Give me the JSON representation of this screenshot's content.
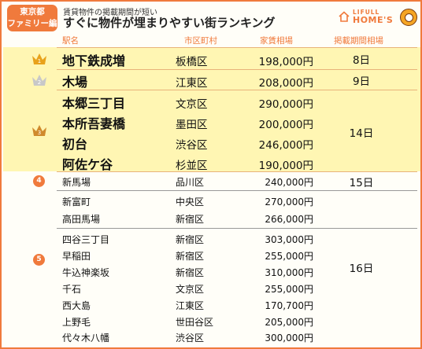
{
  "header": {
    "badge_line1": "東京都",
    "badge_line2": "ファミリー編",
    "subtitle": "賃貸物件の掲載期間が短い",
    "title": "すぐに物件が埋まりやすい街ランキング",
    "logo_small": "LIFULL",
    "logo_big": "HOME'S"
  },
  "columns": {
    "station": "駅名",
    "ward": "市区町村",
    "rent": "家賃相場",
    "period": "掲載期間相場"
  },
  "ranks": {
    "r1": "1",
    "r2": "2",
    "r3": "3",
    "r4": "4",
    "r5": "5"
  },
  "rows": [
    {
      "name": "地下鉄成増",
      "ward": "板橋区",
      "rent": "198,000円"
    },
    {
      "name": "木場",
      "ward": "江東区",
      "rent": "208,000円"
    },
    {
      "name": "本郷三丁目",
      "ward": "文京区",
      "rent": "290,000円"
    },
    {
      "name": "本所吾妻橋",
      "ward": "墨田区",
      "rent": "200,000円"
    },
    {
      "name": "初台",
      "ward": "渋谷区",
      "rent": "246,000円"
    },
    {
      "name": "阿佐ケ谷",
      "ward": "杉並区",
      "rent": "190,000円"
    },
    {
      "name": "新馬場",
      "ward": "品川区",
      "rent": "240,000円"
    },
    {
      "name": "新富町",
      "ward": "中央区",
      "rent": "270,000円"
    },
    {
      "name": "高田馬場",
      "ward": "新宿区",
      "rent": "266,000円"
    },
    {
      "name": "四谷三丁目",
      "ward": "新宿区",
      "rent": "303,000円"
    },
    {
      "name": "早稲田",
      "ward": "新宿区",
      "rent": "255,000円"
    },
    {
      "name": "牛込神楽坂",
      "ward": "新宿区",
      "rent": "310,000円"
    },
    {
      "name": "千石",
      "ward": "文京区",
      "rent": "255,000円"
    },
    {
      "name": "西大島",
      "ward": "江東区",
      "rent": "170,700円"
    },
    {
      "name": "上野毛",
      "ward": "世田谷区",
      "rent": "205,000円"
    },
    {
      "name": "代々木八幡",
      "ward": "渋谷区",
      "rent": "300,000円"
    }
  ],
  "periods": {
    "rank1": "8日",
    "rank2": "9日",
    "rank3": "14日",
    "rank4": "15日",
    "rank5": "16日"
  },
  "colors": {
    "accent": "#f07a3c",
    "gold": "#e8a21b",
    "silver": "#c8c8c8",
    "bronze": "#d08a2c",
    "top_band": "#fff6b3"
  }
}
